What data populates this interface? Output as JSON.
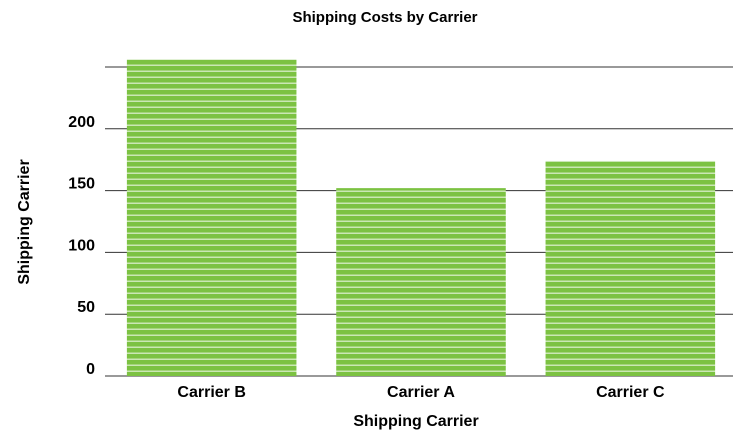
{
  "chart_data": {
    "type": "bar",
    "title": "Shipping Costs by Carrier",
    "xlabel": "Shipping Carrier",
    "ylabel": "Shipping Carrier",
    "categories": [
      "Carrier B",
      "Carrier A",
      "Carrier C"
    ],
    "values": [
      256,
      152,
      174
    ],
    "ylim": [
      0,
      250
    ],
    "yticks": [
      0,
      50,
      100,
      150,
      200
    ],
    "grid": true,
    "legend": "none",
    "colors": {
      "bar": "#7cc242",
      "bar_stripe": "#ffffff",
      "grid": "#333333",
      "text": "#000000"
    }
  }
}
